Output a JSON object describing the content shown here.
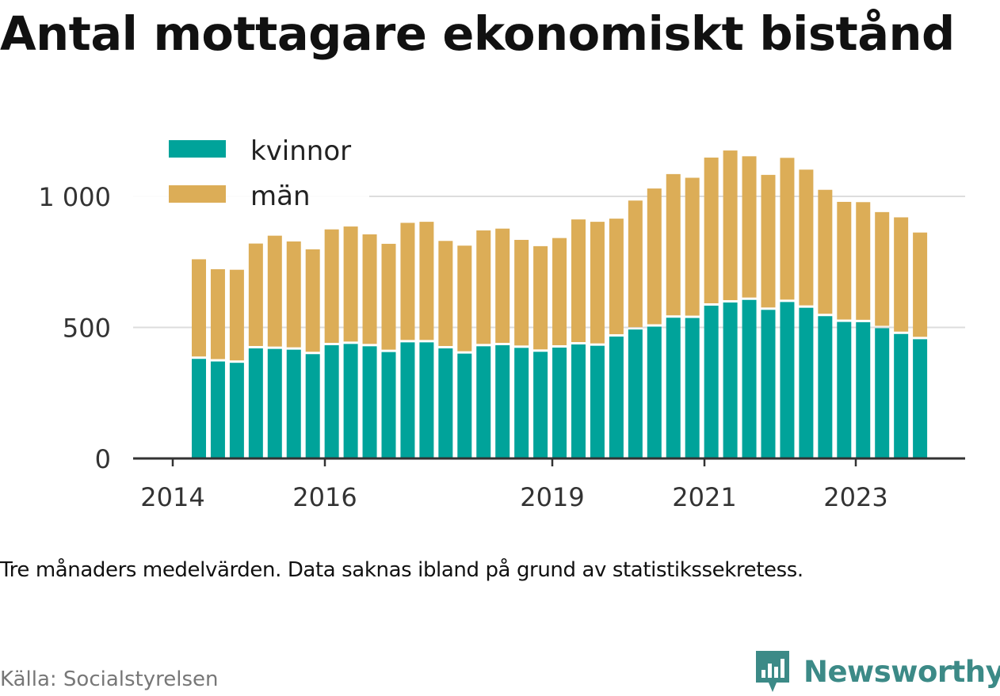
{
  "chart_data": {
    "type": "bar",
    "stacked": true,
    "title": "Antal mottagare ekonomiskt bistånd",
    "ylim": [
      0,
      1200
    ],
    "yticks": [
      0,
      500,
      1000
    ],
    "ytick_labels": [
      "0",
      "500",
      "1 000"
    ],
    "xtick_labels": [
      "2014",
      "2016",
      "2019",
      "2021",
      "2023"
    ],
    "grid": true,
    "legend_position": "top-left",
    "series": [
      {
        "name": "kvinnor",
        "color": "#00a39a",
        "values": [
          380,
          370,
          365,
          420,
          418,
          415,
          398,
          432,
          437,
          428,
          406,
          443,
          443,
          420,
          400,
          428,
          432,
          422,
          407,
          423,
          435,
          430,
          465,
          492,
          503,
          537,
          536,
          583,
          595,
          605,
          567,
          597,
          575,
          543,
          521,
          520,
          497,
          475,
          455
        ]
      },
      {
        "name": "män",
        "color": "#dcad57",
        "values": [
          380,
          352,
          355,
          400,
          432,
          413,
          400,
          442,
          448,
          427,
          413,
          456,
          460,
          410,
          412,
          442,
          445,
          412,
          403,
          418,
          477,
          473,
          450,
          492,
          527,
          548,
          535,
          565,
          580,
          548,
          515,
          550,
          527,
          482,
          458,
          458,
          443,
          445,
          407
        ]
      }
    ]
  },
  "note": "Tre månaders medelvärden. Data saknas ibland på grund av statistikssekretess.",
  "source": "Källa: Socialstyrelsen",
  "brand": {
    "name": "Newsworthy",
    "logo_icon": "bar-chart-bubble-icon",
    "color": "#3c8a87"
  }
}
